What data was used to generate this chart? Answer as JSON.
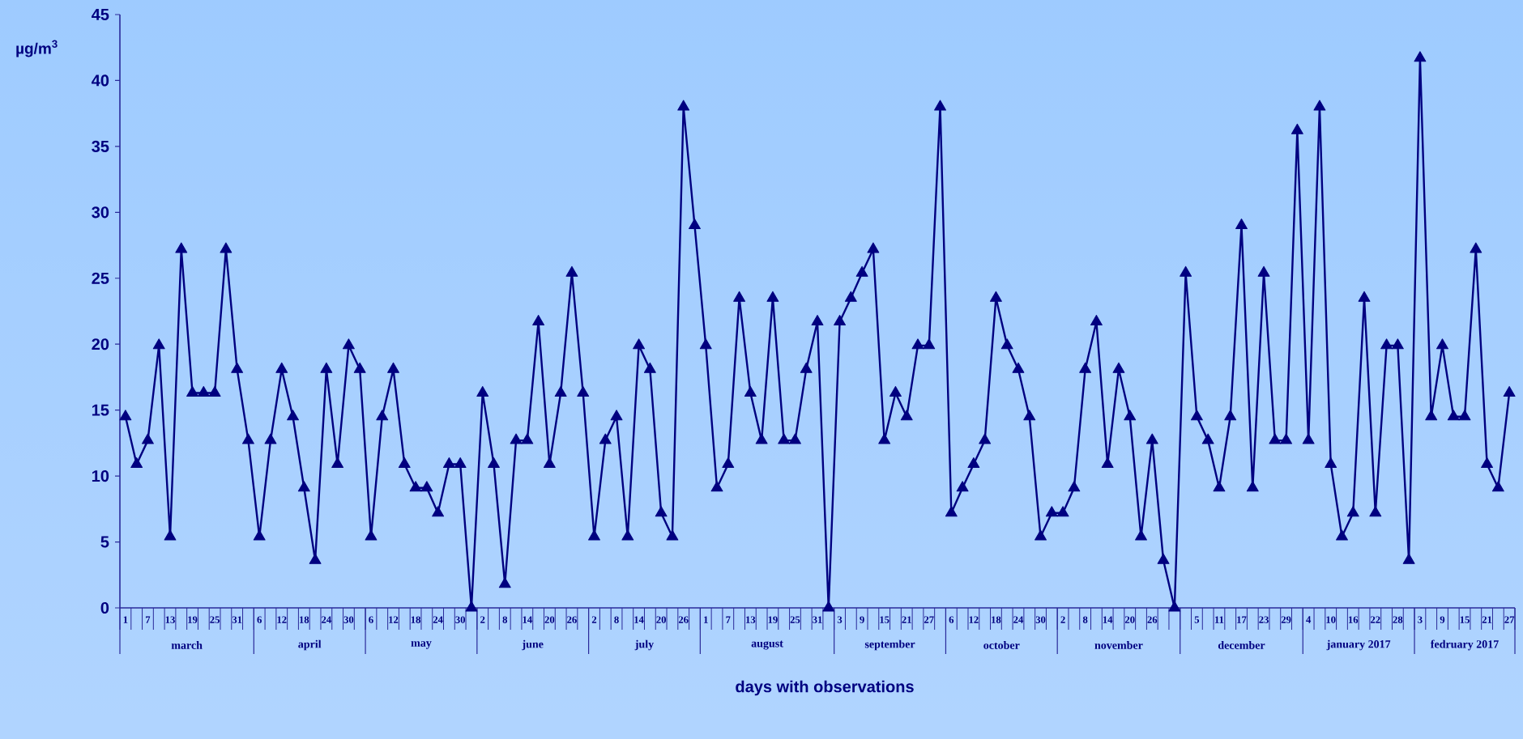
{
  "chart_data": {
    "type": "line",
    "xlabel": "days with observations",
    "ylabel": "µg/m$^{3}$",
    "categories": [
      "1",
      null,
      "7",
      null,
      "13",
      null,
      "19",
      null,
      "25",
      null,
      "31",
      null,
      "6",
      null,
      "12",
      null,
      "18",
      null,
      "24",
      null,
      "30",
      null,
      "6",
      null,
      "12",
      null,
      "18",
      null,
      "24",
      null,
      "30",
      null,
      "2",
      null,
      "8",
      null,
      "14",
      null,
      "20",
      null,
      "26",
      null,
      "2",
      null,
      "8",
      null,
      "14",
      null,
      "20",
      null,
      "26",
      null,
      "1",
      null,
      "7",
      null,
      "13",
      null,
      "19",
      null,
      "25",
      null,
      "31",
      null,
      "3",
      null,
      "9",
      null,
      "15",
      null,
      "21",
      null,
      "27",
      null,
      "6",
      null,
      "12",
      null,
      "18",
      null,
      "24",
      null,
      "30",
      null,
      "2",
      null,
      "8",
      null,
      "14",
      null,
      "20",
      null,
      "26",
      null,
      null,
      null,
      "5",
      null,
      "11",
      null,
      "17",
      null,
      "23",
      null,
      "29",
      null,
      "4",
      null,
      "10",
      null,
      "16",
      null,
      "22",
      null,
      "28",
      null,
      "3",
      null,
      "9",
      null,
      "15",
      null,
      "21",
      null,
      "27"
    ],
    "values": [
      14.5,
      10.9,
      12.7,
      19.9,
      5.4,
      27.2,
      16.3,
      16.3,
      16.3,
      27.2,
      18.1,
      12.7,
      5.4,
      12.7,
      18.1,
      14.5,
      9.1,
      3.6,
      18.1,
      10.9,
      19.9,
      18.1,
      5.4,
      14.5,
      18.1,
      10.9,
      9.1,
      9.1,
      7.2,
      10.9,
      10.9,
      0,
      16.3,
      10.9,
      1.8,
      12.7,
      12.7,
      21.7,
      10.9,
      16.3,
      25.4,
      16.3,
      5.4,
      12.7,
      14.5,
      5.4,
      19.9,
      18.1,
      7.2,
      5.4,
      38,
      29,
      19.9,
      9.1,
      10.9,
      23.5,
      16.3,
      12.7,
      23.5,
      12.7,
      12.7,
      18.1,
      21.7,
      0,
      21.7,
      23.5,
      25.4,
      27.2,
      12.7,
      16.3,
      14.5,
      19.9,
      19.9,
      38,
      7.2,
      9.1,
      10.9,
      12.7,
      23.5,
      19.9,
      18.1,
      14.5,
      5.4,
      7.2,
      7.2,
      9.1,
      18.1,
      21.7,
      10.9,
      18.1,
      14.5,
      5.4,
      12.7,
      3.6,
      0,
      25.4,
      14.5,
      12.7,
      9.1,
      14.5,
      29,
      9.1,
      25.4,
      12.7,
      12.7,
      36.2,
      12.7,
      38,
      10.9,
      5.4,
      7.2,
      23.5,
      7.2,
      19.9,
      19.9,
      3.6,
      41.7,
      14.5,
      19.9,
      14.5,
      14.5,
      27.2,
      10.9,
      9.1,
      16.3
    ],
    "color": "#000080",
    "ylim": [
      0,
      45
    ],
    "yticks": [
      0,
      5,
      10,
      15,
      20,
      25,
      30,
      35,
      40,
      45
    ],
    "marker": "triangle",
    "line_style": "solid",
    "annotations": [
      "march",
      "april",
      "may",
      "june",
      "july",
      "august",
      "september",
      "october",
      "november",
      "december",
      "january 2017",
      "fedruary 2017"
    ]
  }
}
